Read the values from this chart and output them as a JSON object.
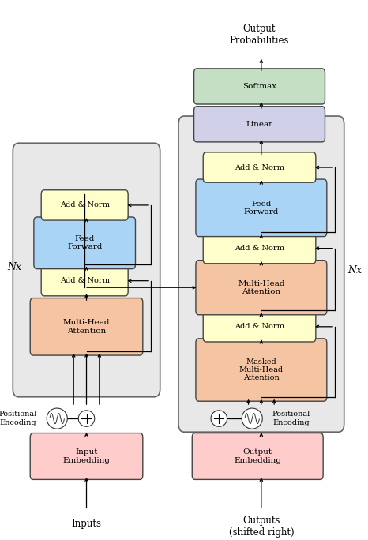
{
  "fig_w": 4.66,
  "fig_h": 6.84,
  "dpi": 100,
  "colors": {
    "embedding": "#ffcccc",
    "add_norm": "#ffffcc",
    "feed_forward": "#aad4f5",
    "attention": "#f5c5a3",
    "linear": "#d0d0e8",
    "softmax": "#c5dfc5",
    "block_bg": "#e8e8e8",
    "edge": "#444444",
    "arrow": "#000000"
  },
  "enc": {
    "bg": [
      0.05,
      0.28,
      0.37,
      0.44
    ],
    "mha": [
      0.09,
      0.35,
      0.29,
      0.09
    ],
    "an1": [
      0.12,
      0.46,
      0.22,
      0.04
    ],
    "ff": [
      0.1,
      0.51,
      0.26,
      0.08
    ],
    "an2": [
      0.12,
      0.6,
      0.22,
      0.04
    ],
    "emb": [
      0.09,
      0.12,
      0.29,
      0.07
    ],
    "pe_plus": [
      0.235,
      0.225
    ],
    "pe_wave": [
      0.155,
      0.225
    ],
    "nx_label": [
      0.04,
      0.505
    ]
  },
  "dec": {
    "bg": [
      0.5,
      0.215,
      0.42,
      0.555
    ],
    "mmha": [
      0.54,
      0.265,
      0.34,
      0.1
    ],
    "an1": [
      0.56,
      0.375,
      0.29,
      0.04
    ],
    "cmha": [
      0.54,
      0.425,
      0.34,
      0.085
    ],
    "an2": [
      0.56,
      0.52,
      0.29,
      0.04
    ],
    "ff": [
      0.54,
      0.57,
      0.34,
      0.09
    ],
    "an3": [
      0.56,
      0.67,
      0.29,
      0.04
    ],
    "emb": [
      0.53,
      0.12,
      0.34,
      0.07
    ],
    "pe_plus": [
      0.595,
      0.225
    ],
    "pe_wave": [
      0.685,
      0.225
    ],
    "nx_label": [
      0.965,
      0.5
    ]
  },
  "top": {
    "linear": [
      0.535,
      0.745,
      0.34,
      0.05
    ],
    "softmax": [
      0.535,
      0.815,
      0.34,
      0.05
    ],
    "out_prob_label": [
      0.705,
      0.935
    ]
  }
}
